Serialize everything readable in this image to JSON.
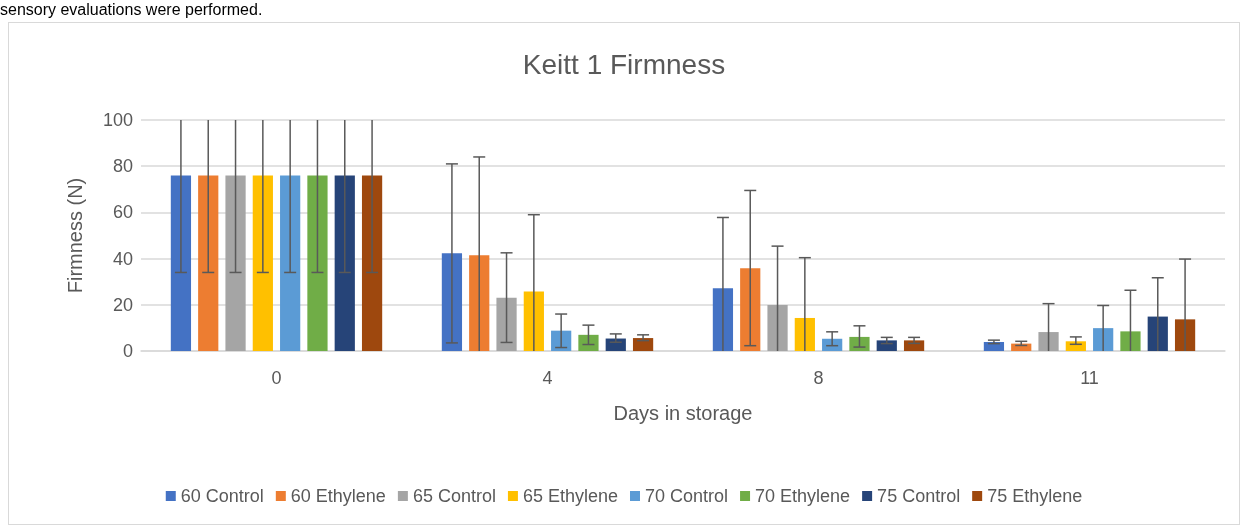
{
  "chart_data": {
    "type": "bar",
    "title": "Keitt 1 Firmness",
    "xlabel": "Days in storage",
    "ylabel": "Firmness (N)",
    "annotations": [
      "sensory evaluations were performed."
    ],
    "categories": [
      "0",
      "4",
      "8",
      "11"
    ],
    "ylim": [
      0,
      100
    ],
    "yticks": [
      0,
      20,
      40,
      60,
      80,
      100
    ],
    "grid": "y",
    "legend": "bottom",
    "series": [
      {
        "name": "60 Control",
        "color": "#4472c4",
        "values": [
          76,
          42.3,
          27.2,
          3.9
        ],
        "errors": [
          [
            34,
            100
          ],
          [
            3.5,
            81
          ],
          [
            0,
            57.8
          ],
          [
            3.2,
            4.7
          ]
        ]
      },
      {
        "name": "60 Ethylene",
        "color": "#ed7d31",
        "values": [
          76,
          41.5,
          35.8,
          3.2
        ],
        "errors": [
          [
            34,
            100
          ],
          [
            0,
            84
          ],
          [
            2.3,
            69.5
          ],
          [
            2.4,
            4.2
          ]
        ]
      },
      {
        "name": "65 Control",
        "color": "#a5a5a5",
        "values": [
          76,
          23,
          19.9,
          8.2
        ],
        "errors": [
          [
            34,
            100
          ],
          [
            3.7,
            42.5
          ],
          [
            0,
            45.4
          ],
          [
            0,
            20.5
          ]
        ]
      },
      {
        "name": "65 Ethylene",
        "color": "#ffc000",
        "values": [
          76,
          25.8,
          14.3,
          4.2
        ],
        "errors": [
          [
            34,
            100
          ],
          [
            0,
            59
          ],
          [
            0,
            40.4
          ],
          [
            2.9,
            6.1
          ]
        ]
      },
      {
        "name": "70 Control",
        "color": "#5b9bd5",
        "values": [
          76,
          8.8,
          5.3,
          9.9
        ],
        "errors": [
          [
            34,
            100
          ],
          [
            1.5,
            16
          ],
          [
            2.3,
            8.3
          ],
          [
            0,
            19.7
          ]
        ]
      },
      {
        "name": "70 Ethylene",
        "color": "#70ad47",
        "values": [
          76,
          7,
          6.1,
          8.5
        ],
        "errors": [
          [
            34,
            100
          ],
          [
            2.8,
            11.2
          ],
          [
            1.7,
            10.9
          ],
          [
            0,
            26.3
          ]
        ]
      },
      {
        "name": "75 Control",
        "color": "#264478",
        "values": [
          76,
          5.4,
          4.6,
          14.9
        ],
        "errors": [
          [
            34,
            100
          ],
          [
            3.8,
            7.4
          ],
          [
            3.2,
            5.9
          ],
          [
            0,
            31.7
          ]
        ]
      },
      {
        "name": "75 Ethylene",
        "color": "#9e480e",
        "values": [
          76,
          5.6,
          4.6,
          13.7
        ],
        "errors": [
          [
            34,
            100
          ],
          [
            4.5,
            7
          ],
          [
            3.3,
            5.9
          ],
          [
            0,
            39.8
          ]
        ]
      }
    ]
  }
}
